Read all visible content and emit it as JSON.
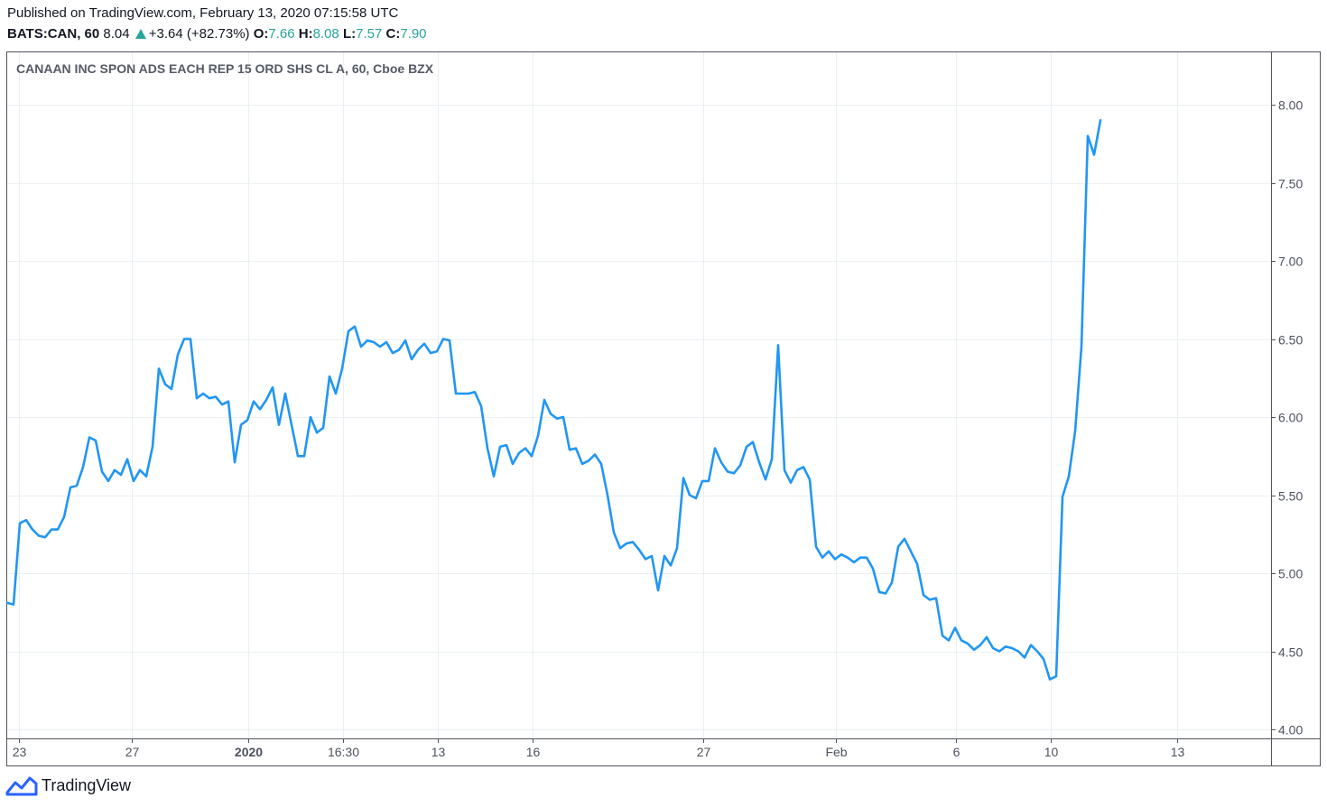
{
  "header": {
    "published": "Published on TradingView.com, February 13, 2020 07:15:58 UTC",
    "symbol": "BATS:CAN, 60",
    "last": "8.04",
    "change": "+3.64 (+82.73%)",
    "open_label": "O:",
    "open": "7.66",
    "high_label": "H:",
    "high": "8.08",
    "low_label": "L:",
    "low": "7.57",
    "close_label": "C:",
    "close": "7.90"
  },
  "footer": {
    "brand": "TradingView"
  },
  "colors": {
    "line": "#2196f3",
    "up": "#26a69a",
    "grid": "#e9eff3",
    "axis_text": "#4c525e",
    "border": "#50535e"
  },
  "chart_data": {
    "type": "line",
    "title": "CANAAN INC SPON ADS EACH REP 15 ORD SHS CL A, 60, Cboe BZX",
    "ylim": [
      4.0,
      8.15
    ],
    "y_ticks": [
      4.0,
      4.5,
      5.0,
      5.5,
      6.0,
      6.5,
      7.0,
      7.5,
      8.0
    ],
    "y_tick_labels": [
      "4.00",
      "4.50",
      "5.00",
      "5.50",
      "6.00",
      "6.50",
      "7.00",
      "7.50",
      "8.00"
    ],
    "x_tick_labels": [
      "23",
      "27",
      "2020",
      "16:30",
      "13",
      "16",
      "27",
      "Feb",
      "6",
      "10",
      "13"
    ],
    "x_tick_bars": [
      1.8,
      19.7,
      38.2,
      53.1,
      68.2,
      83.1,
      110.1,
      131.2,
      150.2,
      165.2,
      185.2
    ],
    "x_label": "",
    "y_label": "",
    "grid": true,
    "values": [
      4.81,
      4.8,
      5.32,
      5.34,
      5.28,
      5.24,
      5.23,
      5.28,
      5.28,
      5.36,
      5.55,
      5.56,
      5.68,
      5.87,
      5.85,
      5.65,
      5.59,
      5.66,
      5.63,
      5.73,
      5.59,
      5.66,
      5.62,
      5.81,
      6.31,
      6.21,
      6.18,
      6.4,
      6.5,
      6.5,
      6.12,
      6.15,
      6.12,
      6.13,
      6.08,
      6.1,
      5.71,
      5.95,
      5.98,
      6.1,
      6.05,
      6.11,
      6.19,
      5.95,
      6.15,
      5.95,
      5.75,
      5.75,
      6.0,
      5.9,
      5.93,
      6.26,
      6.15,
      6.31,
      6.55,
      6.58,
      6.45,
      6.49,
      6.48,
      6.45,
      6.48,
      6.41,
      6.43,
      6.49,
      6.37,
      6.43,
      6.47,
      6.41,
      6.42,
      6.5,
      6.49,
      6.15,
      6.15,
      6.15,
      6.16,
      6.07,
      5.8,
      5.62,
      5.81,
      5.82,
      5.7,
      5.77,
      5.8,
      5.75,
      5.88,
      6.11,
      6.02,
      5.99,
      6.0,
      5.79,
      5.8,
      5.7,
      5.72,
      5.76,
      5.7,
      5.5,
      5.26,
      5.16,
      5.19,
      5.2,
      5.15,
      5.09,
      5.11,
      4.89,
      5.11,
      5.05,
      5.16,
      5.61,
      5.5,
      5.48,
      5.59,
      5.59,
      5.8,
      5.71,
      5.65,
      5.64,
      5.69,
      5.81,
      5.84,
      5.71,
      5.6,
      5.73,
      6.46,
      5.66,
      5.58,
      5.66,
      5.68,
      5.6,
      5.17,
      5.1,
      5.14,
      5.09,
      5.12,
      5.1,
      5.07,
      5.1,
      5.1,
      5.03,
      4.88,
      4.87,
      4.94,
      5.17,
      5.22,
      5.14,
      5.06,
      4.86,
      4.83,
      4.84,
      4.6,
      4.57,
      4.65,
      4.57,
      4.55,
      4.51,
      4.54,
      4.59,
      4.52,
      4.5,
      4.53,
      4.52,
      4.5,
      4.46,
      4.54,
      4.5,
      4.45,
      4.32,
      4.34,
      5.49,
      5.62,
      5.91,
      6.45,
      7.8,
      7.68,
      7.9
    ]
  }
}
